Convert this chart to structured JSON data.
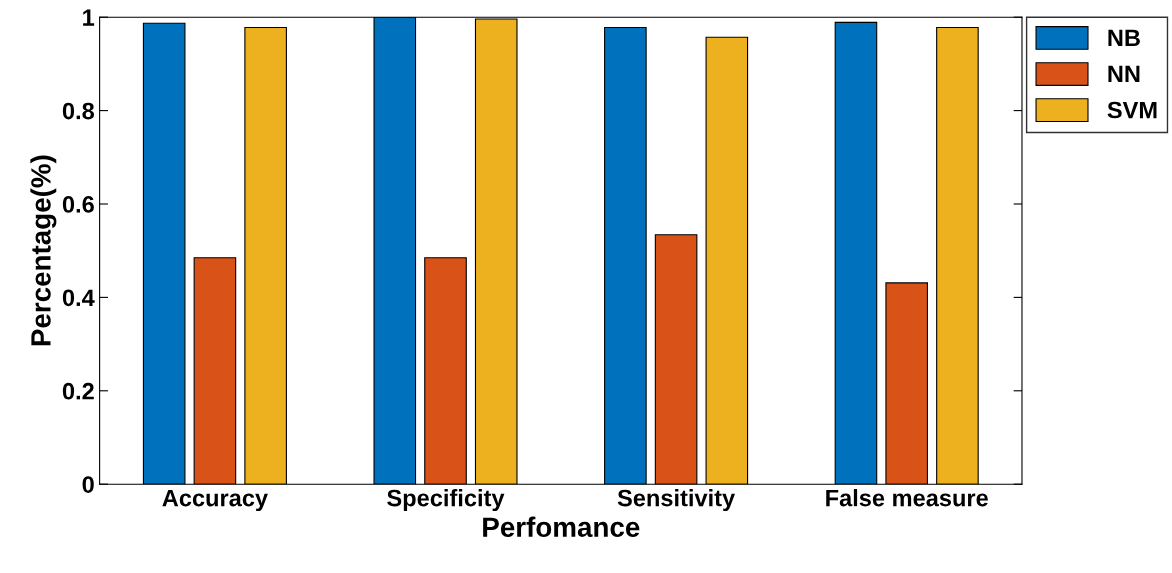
{
  "chart_data": {
    "type": "bar",
    "xlabel": "Perfomance",
    "ylabel": "Percentage(%)",
    "categories": [
      "Accuracy",
      "Specificity",
      "Sensitivity",
      "False measure"
    ],
    "series": [
      {
        "name": "NB",
        "color": "#0072bd",
        "values": [
          0.987,
          1.0,
          0.978,
          0.989
        ]
      },
      {
        "name": "NN",
        "color": "#d95319",
        "values": [
          0.485,
          0.485,
          0.534,
          0.431
        ]
      },
      {
        "name": "SVM",
        "color": "#edb120",
        "values": [
          0.978,
          0.996,
          0.957,
          0.978
        ]
      }
    ],
    "ylim": [
      0,
      1
    ],
    "yticks": [
      0,
      0.2,
      0.4,
      0.6,
      0.8,
      1
    ],
    "grid": false,
    "legend": "top right"
  }
}
